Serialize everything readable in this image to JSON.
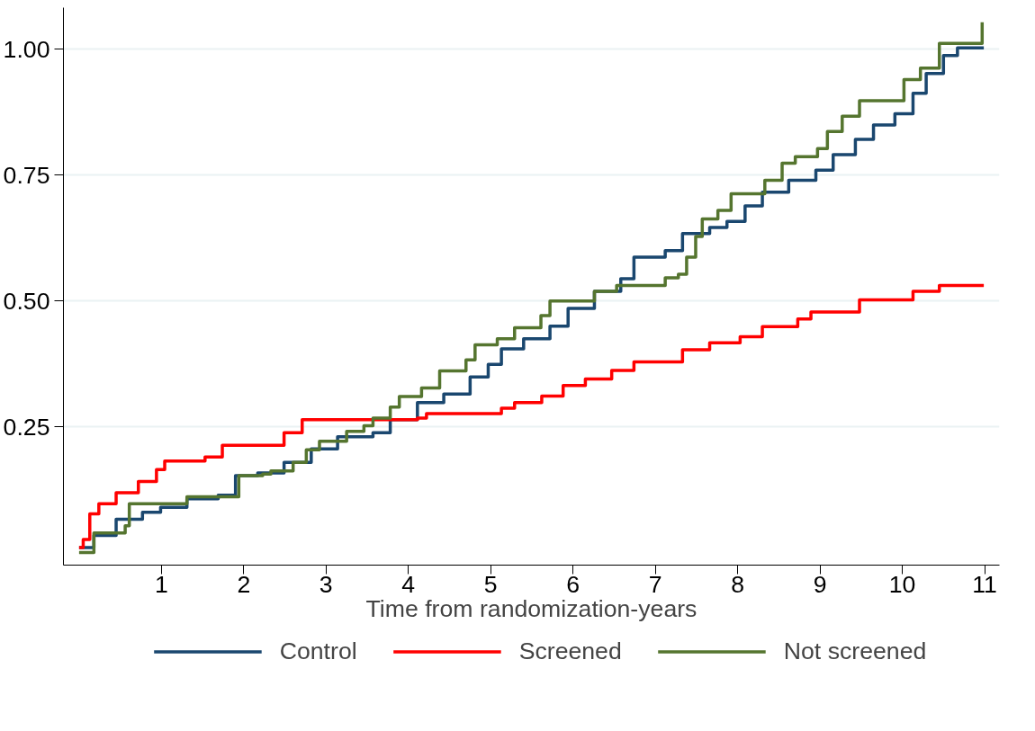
{
  "chart_data": {
    "type": "step",
    "xlabel": "Time from randomization-years",
    "xlim": [
      -0.19,
      11.18
    ],
    "ylim": [
      -0.025,
      1.083
    ],
    "xticks": [
      1,
      2,
      3,
      4,
      5,
      6,
      7,
      8,
      9,
      10,
      11
    ],
    "yticks": [
      {
        "value": 0.25,
        "label": "0.25"
      },
      {
        "value": 0.5,
        "label": "0.50"
      },
      {
        "value": 0.75,
        "label": "0.75"
      },
      {
        "value": 1.0,
        "label": "1.00"
      }
    ],
    "grid": "y",
    "legend": "bottom",
    "line_style": "solid",
    "series": [
      {
        "name": "Control",
        "color": "#1a476f",
        "x": [
          0,
          0.18,
          0.45,
          0.77,
          0.99,
          1.31,
          1.69,
          1.9,
          2.17,
          2.49,
          2.82,
          3.14,
          3.57,
          3.78,
          4.11,
          4.43,
          4.75,
          4.97,
          5.13,
          5.4,
          5.72,
          5.94,
          6.26,
          6.58,
          6.74,
          7.12,
          7.33,
          7.66,
          7.87,
          8.09,
          8.3,
          8.62,
          8.95,
          9.16,
          9.43,
          9.65,
          9.91,
          10.13,
          10.29,
          10.5,
          10.67,
          10.99
        ],
        "values": [
          0.01,
          0.034,
          0.066,
          0.08,
          0.09,
          0.107,
          0.114,
          0.153,
          0.158,
          0.179,
          0.206,
          0.23,
          0.238,
          0.264,
          0.298,
          0.315,
          0.349,
          0.374,
          0.405,
          0.425,
          0.45,
          0.485,
          0.519,
          0.544,
          0.587,
          0.6,
          0.634,
          0.646,
          0.658,
          0.689,
          0.716,
          0.74,
          0.76,
          0.791,
          0.821,
          0.85,
          0.872,
          0.913,
          0.952,
          0.988,
          1.003,
          1.003
        ]
      },
      {
        "name": "Screened",
        "color": "#ff0000",
        "x": [
          0,
          0.05,
          0.13,
          0.24,
          0.45,
          0.72,
          0.94,
          1.04,
          1.53,
          1.74,
          2.49,
          2.71,
          4.11,
          4.22,
          5.13,
          5.29,
          5.62,
          5.88,
          6.15,
          6.47,
          6.74,
          7.33,
          7.66,
          8.03,
          8.3,
          8.73,
          8.89,
          9.48,
          10.13,
          10.45,
          10.99
        ],
        "values": [
          0.01,
          0.026,
          0.077,
          0.097,
          0.119,
          0.141,
          0.165,
          0.182,
          0.19,
          0.213,
          0.238,
          0.264,
          0.267,
          0.276,
          0.287,
          0.298,
          0.311,
          0.332,
          0.345,
          0.362,
          0.379,
          0.403,
          0.417,
          0.429,
          0.449,
          0.464,
          0.478,
          0.502,
          0.519,
          0.531,
          0.531
        ]
      },
      {
        "name": "Not screened",
        "color": "#55752f",
        "x": [
          0,
          0.18,
          0.56,
          0.61,
          1.31,
          1.94,
          2.23,
          2.33,
          2.6,
          2.76,
          2.92,
          3.25,
          3.46,
          3.57,
          3.78,
          3.89,
          4.16,
          4.38,
          4.7,
          4.81,
          5.08,
          5.29,
          5.61,
          5.72,
          6.26,
          6.53,
          7.12,
          7.28,
          7.38,
          7.49,
          7.57,
          7.76,
          7.92,
          8.33,
          8.54,
          8.7,
          8.97,
          9.09,
          9.27,
          9.48,
          10.02,
          10.22,
          10.45,
          10.97
        ],
        "values": [
          0.0,
          0.039,
          0.053,
          0.097,
          0.111,
          0.153,
          0.156,
          0.162,
          0.179,
          0.204,
          0.221,
          0.241,
          0.252,
          0.267,
          0.289,
          0.31,
          0.327,
          0.361,
          0.383,
          0.413,
          0.425,
          0.447,
          0.471,
          0.5,
          0.519,
          0.531,
          0.546,
          0.553,
          0.587,
          0.628,
          0.663,
          0.68,
          0.713,
          0.74,
          0.774,
          0.787,
          0.803,
          0.837,
          0.867,
          0.898,
          0.94,
          0.963,
          1.012,
          1.054
        ]
      }
    ]
  }
}
